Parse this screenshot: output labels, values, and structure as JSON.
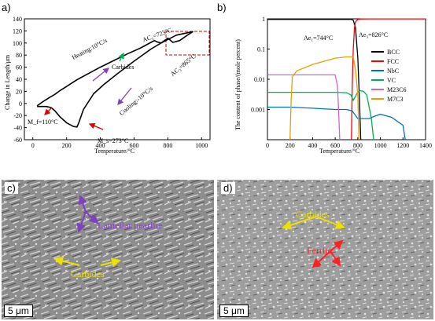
{
  "panels": {
    "a": "a)",
    "b": "b)",
    "c": "c)",
    "d": "d)"
  },
  "chart_data": [
    {
      "type": "line",
      "xlabel": "Temperature/°C",
      "ylabel": "Change in Length/μm",
      "xlim": [
        -50,
        1050
      ],
      "ylim": [
        -60,
        140
      ],
      "xticks": [
        0,
        200,
        400,
        600,
        800,
        1000
      ],
      "yticks": [
        -60,
        -40,
        -20,
        0,
        20,
        40,
        60,
        80,
        100,
        120,
        140
      ],
      "series": [
        {
          "name": "",
          "x": [
            25,
            60,
            100,
            130,
            160,
            200,
            260,
            320,
            400,
            480,
            560,
            640,
            700,
            720,
            735,
            760,
            800,
            830,
            870,
            910,
            950
          ],
          "y": [
            -4,
            3,
            10,
            15,
            21,
            28,
            39,
            48,
            60,
            71,
            82,
            92,
            101,
            104,
            102,
            100,
            108,
            101,
            104,
            112,
            119
          ]
        },
        {
          "name": "",
          "x": [
            950,
            850,
            760,
            700,
            600,
            500,
            420,
            360,
            300,
            275,
            262,
            240,
            200,
            160,
            130,
            110,
            80,
            40,
            25
          ],
          "y": [
            119,
            113,
            100,
            90,
            70,
            49,
            31,
            16,
            -10,
            -30,
            -39,
            -38,
            -32,
            -22,
            -12,
            -7,
            -5,
            -5,
            -5
          ]
        }
      ],
      "annotations": {
        "heating": "Heating:10°C/s",
        "carbides": "Carbides",
        "ac1": "AC₁=723°C",
        "ac3": "AC₃=865°C",
        "cooling": "Cooling:-10°C/s",
        "mf": "M_f=110°C",
        "ms": "M_s=273°C"
      }
    },
    {
      "type": "line",
      "xlabel": "Temperature/°C",
      "ylabel": "The content of phase/(mole percent)",
      "xlim": [
        0,
        1400
      ],
      "ylim": [
        0.0001,
        1
      ],
      "yscale": "log",
      "xticks": [
        0,
        200,
        400,
        600,
        800,
        1000,
        1200,
        1400
      ],
      "yticks": [
        0.001,
        0.01,
        0.1,
        1
      ],
      "series": [
        {
          "name": "BCC",
          "color": "#000000",
          "x": [
            0,
            200,
            400,
            600,
            700,
            744,
            760,
            780,
            800,
            815,
            826
          ],
          "y": [
            0.96,
            0.96,
            0.96,
            0.96,
            0.96,
            0.96,
            0.9,
            0.5,
            0.05,
            0.002,
            0.0001
          ]
        },
        {
          "name": "FCC",
          "color": "#ff0000",
          "x": [
            744,
            750,
            760,
            770,
            780,
            800,
            826,
            900,
            1200,
            1400
          ],
          "y": [
            0.0001,
            0.005,
            0.1,
            0.5,
            0.8,
            0.95,
            0.99,
            0.995,
            0.995,
            0.995
          ]
        },
        {
          "name": "NbC",
          "color": "#0070c0",
          "x": [
            0,
            200,
            400,
            600,
            700,
            750,
            800,
            850,
            900,
            950,
            1000,
            1100,
            1200,
            1220
          ],
          "y": [
            0.0012,
            0.0012,
            0.0011,
            0.001,
            0.001,
            0.0009,
            0.0005,
            0.0005,
            0.0005,
            0.0006,
            0.0007,
            0.00055,
            0.0003,
            0.0001
          ]
        },
        {
          "name": "VC",
          "color": "#00b050",
          "x": [
            0,
            200,
            400,
            600,
            700,
            740,
            760,
            800,
            820,
            850,
            880,
            920,
            940
          ],
          "y": [
            0.0037,
            0.0037,
            0.0037,
            0.0037,
            0.0036,
            0.003,
            0.002,
            0.0038,
            0.0042,
            0.004,
            0.003,
            0.0005,
            0.0001
          ]
        },
        {
          "name": "M23C6",
          "color": "#cc66cc",
          "x": [
            0,
            200,
            400,
            600,
            620,
            630,
            640
          ],
          "y": [
            0.014,
            0.014,
            0.014,
            0.014,
            0.006,
            0.001,
            0.0001
          ]
        },
        {
          "name": "M7C3",
          "color": "#e6a000",
          "x": [
            200,
            210,
            220,
            260,
            400,
            600,
            700,
            760,
            780,
            800,
            810
          ],
          "y": [
            0.0001,
            0.002,
            0.012,
            0.019,
            0.031,
            0.05,
            0.055,
            0.055,
            0.02,
            0.003,
            0.0001
          ]
        }
      ],
      "annotations": {
        "ae1": "Ae₁=744°C",
        "ae3": "Ae₃=826°C"
      }
    }
  ],
  "micrographs": {
    "c": {
      "labels": [
        "Lamellar pearlite",
        "Carbides"
      ],
      "scale": "5 μm"
    },
    "d": {
      "labels": [
        "Carbides",
        "Ferrite"
      ],
      "scale": "5 μm"
    }
  }
}
